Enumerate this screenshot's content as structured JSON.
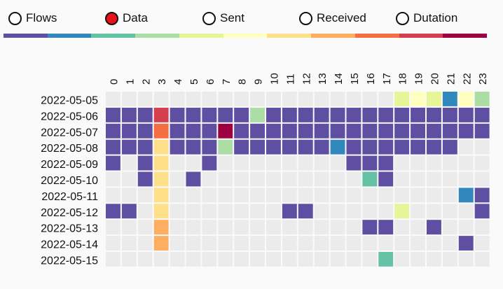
{
  "metrics": [
    {
      "label": "Flows",
      "selected": false
    },
    {
      "label": "Data",
      "selected": true
    },
    {
      "label": "Sent",
      "selected": false
    },
    {
      "label": "Received",
      "selected": false
    },
    {
      "label": "Dutation",
      "selected": false
    }
  ],
  "colors": {
    "selected_radio": "#e8131a",
    "empty_cell": "#ebebeb",
    "scale": [
      "#5e4fa2",
      "#3288bd",
      "#66c2a5",
      "#abdda4",
      "#e6f598",
      "#ffffbf",
      "#fee08b",
      "#fdae61",
      "#f46d43",
      "#d53e4f",
      "#9e0142"
    ]
  },
  "chart_data": {
    "type": "heatmap",
    "x": [
      "0",
      "1",
      "2",
      "3",
      "4",
      "5",
      "6",
      "7",
      "8",
      "9",
      "10",
      "11",
      "12",
      "13",
      "14",
      "15",
      "16",
      "17",
      "18",
      "19",
      "20",
      "21",
      "22",
      "23"
    ],
    "y": [
      "2022-05-05",
      "2022-05-06",
      "2022-05-07",
      "2022-05-08",
      "2022-05-09",
      "2022-05-10",
      "2022-05-11",
      "2022-05-12",
      "2022-05-13",
      "2022-05-14",
      "2022-05-15"
    ],
    "values": [
      [
        null,
        null,
        null,
        null,
        null,
        null,
        null,
        null,
        null,
        null,
        null,
        null,
        null,
        null,
        null,
        null,
        null,
        null,
        4,
        5,
        4,
        1,
        5,
        3
      ],
      [
        0,
        0,
        0,
        9,
        0,
        0,
        0,
        0,
        0,
        3,
        0,
        0,
        0,
        0,
        0,
        0,
        0,
        0,
        0,
        0,
        0,
        0,
        0,
        0
      ],
      [
        0,
        0,
        0,
        8,
        0,
        0,
        0,
        10,
        0,
        0,
        0,
        0,
        0,
        0,
        0,
        0,
        0,
        0,
        0,
        0,
        0,
        0,
        0,
        0
      ],
      [
        0,
        0,
        0,
        6,
        0,
        0,
        0,
        3,
        0,
        0,
        0,
        0,
        0,
        0,
        1,
        0,
        0,
        0,
        0,
        0,
        0,
        0,
        null,
        null
      ],
      [
        0,
        null,
        0,
        6,
        null,
        null,
        0,
        null,
        null,
        null,
        null,
        null,
        null,
        null,
        null,
        0,
        0,
        0,
        null,
        null,
        null,
        null,
        null,
        null
      ],
      [
        null,
        null,
        0,
        6,
        null,
        0,
        null,
        null,
        null,
        null,
        null,
        null,
        null,
        null,
        null,
        null,
        2,
        0,
        null,
        null,
        null,
        null,
        null,
        null
      ],
      [
        null,
        null,
        null,
        6,
        null,
        null,
        null,
        null,
        null,
        null,
        null,
        null,
        null,
        null,
        null,
        null,
        null,
        null,
        null,
        null,
        null,
        null,
        1,
        0
      ],
      [
        0,
        0,
        null,
        6,
        null,
        null,
        null,
        null,
        null,
        null,
        null,
        0,
        0,
        null,
        null,
        null,
        null,
        null,
        4,
        null,
        null,
        null,
        null,
        0
      ],
      [
        null,
        null,
        null,
        7,
        null,
        null,
        null,
        null,
        null,
        null,
        null,
        null,
        null,
        null,
        null,
        null,
        0,
        0,
        null,
        null,
        0,
        null,
        null,
        null
      ],
      [
        null,
        null,
        null,
        7,
        null,
        null,
        null,
        null,
        null,
        null,
        null,
        null,
        null,
        null,
        null,
        null,
        null,
        null,
        null,
        null,
        null,
        null,
        0,
        null
      ],
      [
        null,
        null,
        null,
        null,
        null,
        null,
        null,
        null,
        null,
        null,
        null,
        null,
        null,
        null,
        null,
        null,
        null,
        2,
        null,
        null,
        null,
        null,
        null,
        null
      ]
    ],
    "legend": "top",
    "grid": false
  }
}
